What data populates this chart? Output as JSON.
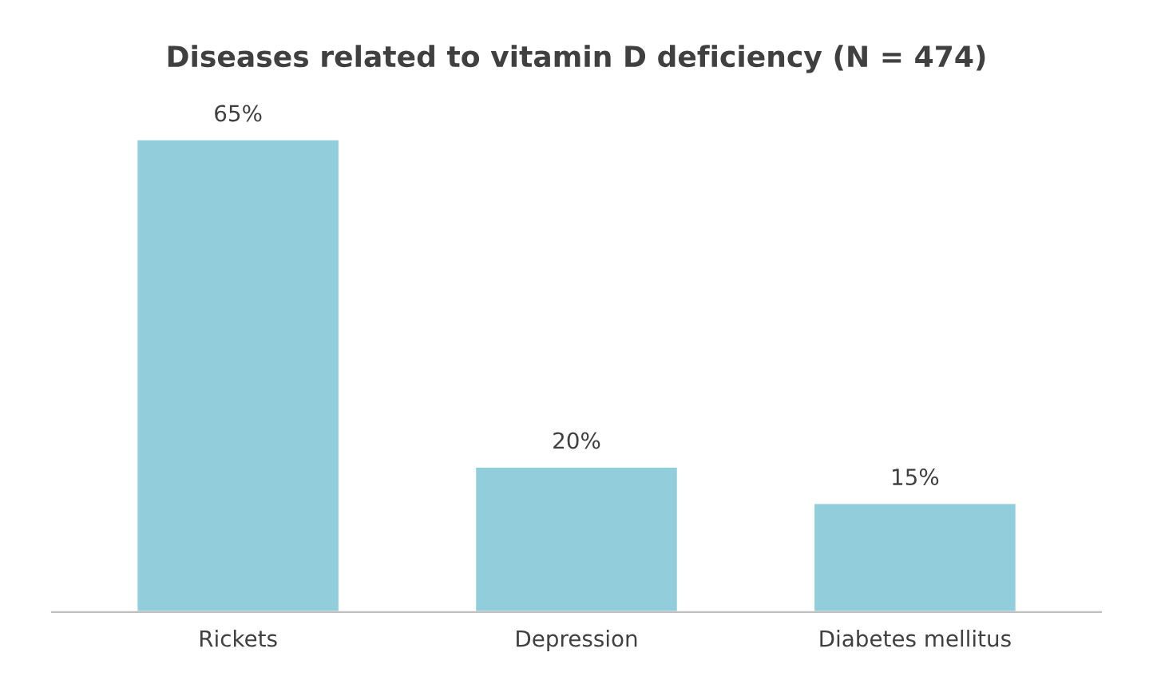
{
  "chart_data": {
    "type": "bar",
    "title": "Diseases related to vitamin D deficiency (N = 474)",
    "categories": [
      "Rickets",
      "Depression",
      "Diabetes mellitus"
    ],
    "values": [
      65,
      20,
      15
    ],
    "value_labels": [
      "65%",
      "20%",
      "15%"
    ],
    "color": "#92cddc",
    "grid": false,
    "legend": false
  }
}
